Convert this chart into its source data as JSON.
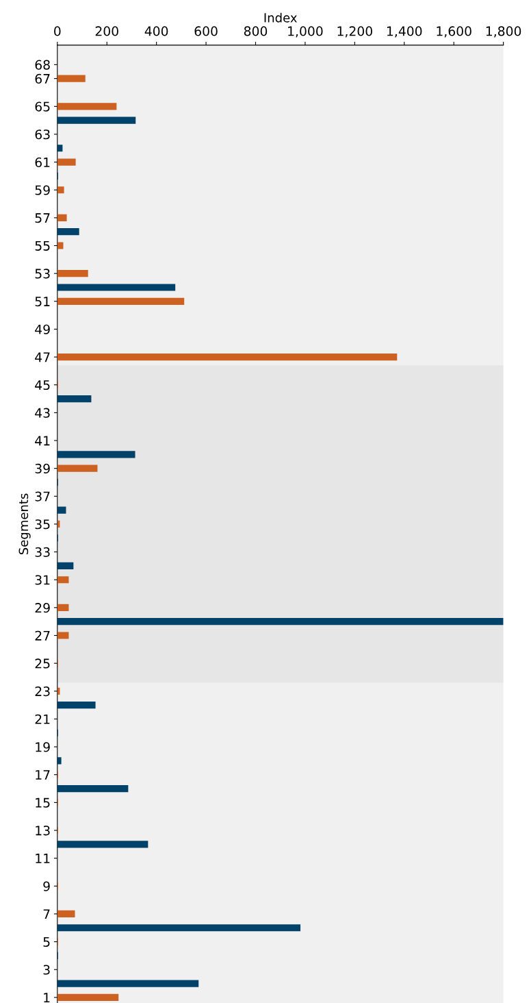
{
  "chart_data": {
    "type": "bar",
    "orientation": "horizontal",
    "xlabel": "Index",
    "ylabel": "Segments",
    "x": [
      1,
      2,
      3,
      4,
      5,
      6,
      7,
      8,
      9,
      10,
      11,
      12,
      13,
      14,
      15,
      16,
      17,
      18,
      19,
      20,
      21,
      22,
      23,
      24,
      25,
      26,
      27,
      28,
      29,
      30,
      31,
      32,
      33,
      34,
      35,
      36,
      37,
      38,
      39,
      40,
      41,
      42,
      43,
      44,
      45,
      46,
      47,
      48,
      49,
      50,
      51,
      52,
      53,
      54,
      55,
      56,
      57,
      58,
      59,
      60,
      61,
      62,
      63,
      64,
      65,
      66,
      67,
      68
    ],
    "values": [
      247,
      570,
      0,
      3,
      3,
      981,
      71,
      0,
      3,
      0,
      0,
      366,
      3,
      0,
      3,
      286,
      3,
      16,
      0,
      3,
      0,
      154,
      10,
      0,
      3,
      0,
      46,
      1800,
      46,
      0,
      46,
      65,
      0,
      3,
      10,
      35,
      0,
      3,
      162,
      314,
      0,
      0,
      0,
      137,
      3,
      0,
      1371,
      0,
      0,
      0,
      512,
      476,
      124,
      0,
      24,
      88,
      38,
      0,
      27,
      3,
      74,
      21,
      0,
      316,
      239,
      0,
      113,
      0
    ],
    "colors": [
      "#cc6122",
      "#004269",
      "#cc6122",
      "#004269",
      "#cc6122",
      "#004269",
      "#cc6122",
      "#004269",
      "#cc6122",
      "#004269",
      "#cc6122",
      "#004269",
      "#cc6122",
      "#004269",
      "#cc6122",
      "#004269",
      "#cc6122",
      "#004269",
      "#cc6122",
      "#004269",
      "#cc6122",
      "#004269",
      "#cc6122",
      "#004269",
      "#cc6122",
      "#004269",
      "#cc6122",
      "#004269",
      "#cc6122",
      "#004269",
      "#cc6122",
      "#004269",
      "#cc6122",
      "#004269",
      "#cc6122",
      "#004269",
      "#cc6122",
      "#004269",
      "#cc6122",
      "#004269",
      "#cc6122",
      "#004269",
      "#cc6122",
      "#004269",
      "#cc6122",
      "#004269",
      "#cc6122",
      "#004269",
      "#cc6122",
      "#004269",
      "#cc6122",
      "#004269",
      "#cc6122",
      "#004269",
      "#cc6122",
      "#004269",
      "#cc6122",
      "#004269",
      "#cc6122",
      "#004269",
      "#cc6122",
      "#004269",
      "#cc6122",
      "#004269",
      "#cc6122",
      "#004269",
      "#cc6122",
      "#004269"
    ],
    "xlim": [
      0,
      1800
    ],
    "xticks": [
      0,
      200,
      400,
      600,
      800,
      {
        "value": 1000,
        "label": "1,000"
      },
      {
        "value": 1200,
        "label": "1,200"
      },
      {
        "value": 1400,
        "label": "1,400"
      },
      {
        "value": 1600,
        "label": "1,600"
      },
      {
        "value": 1800,
        "label": "1,800"
      }
    ],
    "ylim": [
      0.6,
      69.4
    ],
    "yticks": [
      1,
      3,
      5,
      7,
      9,
      11,
      13,
      15,
      17,
      19,
      21,
      23,
      25,
      27,
      29,
      31,
      33,
      35,
      37,
      39,
      41,
      43,
      45,
      47,
      49,
      51,
      53,
      55,
      57,
      59,
      61,
      63,
      65,
      67,
      68
    ],
    "bands": [
      {
        "axis": "y",
        "from": 23.6,
        "to": 46.4,
        "color": "#e6e6e6"
      }
    ],
    "grid": false,
    "legend": false
  }
}
